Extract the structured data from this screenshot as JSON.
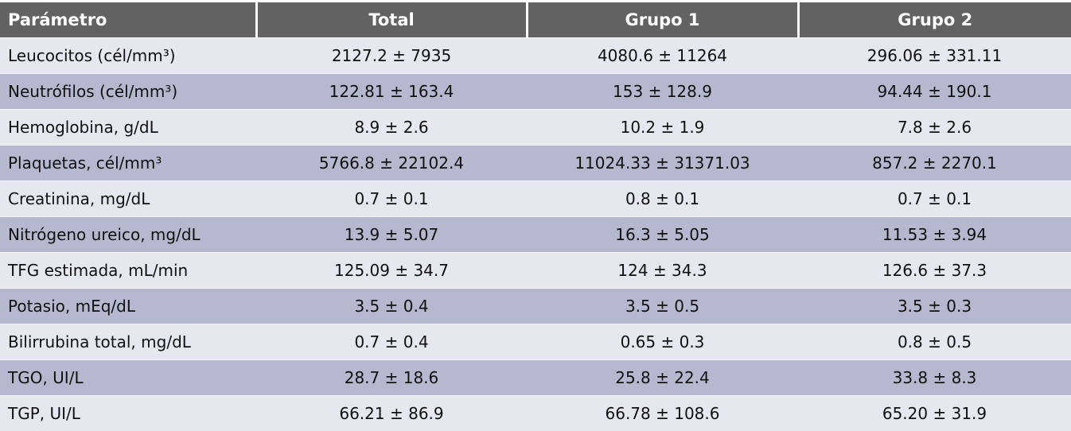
{
  "headers": [
    "Parámetro",
    "Total",
    "Grupo 1",
    "Grupo 2"
  ],
  "rows": [
    [
      "Leucocitos (cél/mm³)",
      "2127.2 ± 7935",
      "4080.6 ± 11264",
      "296.06 ± 331.11"
    ],
    [
      "Neutrófilos (cél/mm³)",
      "122.81 ± 163.4",
      "153 ± 128.9",
      "94.44 ± 190.1"
    ],
    [
      "Hemoglobina, g/dL",
      "8.9 ± 2.6",
      "10.2 ± 1.9",
      "7.8 ± 2.6"
    ],
    [
      "Plaquetas, cél/mm³",
      "5766.8 ± 22102.4",
      "11024.33 ± 31371.03",
      "857.2 ± 2270.1"
    ],
    [
      "Creatinina, mg/dL",
      "0.7 ± 0.1",
      "0.8 ± 0.1",
      "0.7 ± 0.1"
    ],
    [
      "Nitrógeno ureico, mg/dL",
      "13.9 ± 5.07",
      "16.3 ± 5.05",
      "11.53 ± 3.94"
    ],
    [
      "TFG estimada, mL/min",
      "125.09 ± 34.7",
      "124 ± 34.3",
      "126.6 ± 37.3"
    ],
    [
      "Potasio, mEq/dL",
      "3.5 ± 0.4",
      "3.5 ± 0.5",
      "3.5 ± 0.3"
    ],
    [
      "Bilirrubina total, mg/dL",
      "0.7 ± 0.4",
      "0.65 ± 0.3",
      "0.8 ± 0.5"
    ],
    [
      "TGO, UI/L",
      "28.7 ± 18.6",
      "25.8 ± 22.4",
      "33.8 ± 8.3"
    ],
    [
      "TGP, UI/L",
      "66.21 ± 86.9",
      "66.78 ± 108.6",
      "65.20 ± 31.9"
    ]
  ],
  "colors": {
    "header_bg": "#626262",
    "row_light": "#e7e7f0",
    "row_dark": "#b6b8cf"
  }
}
